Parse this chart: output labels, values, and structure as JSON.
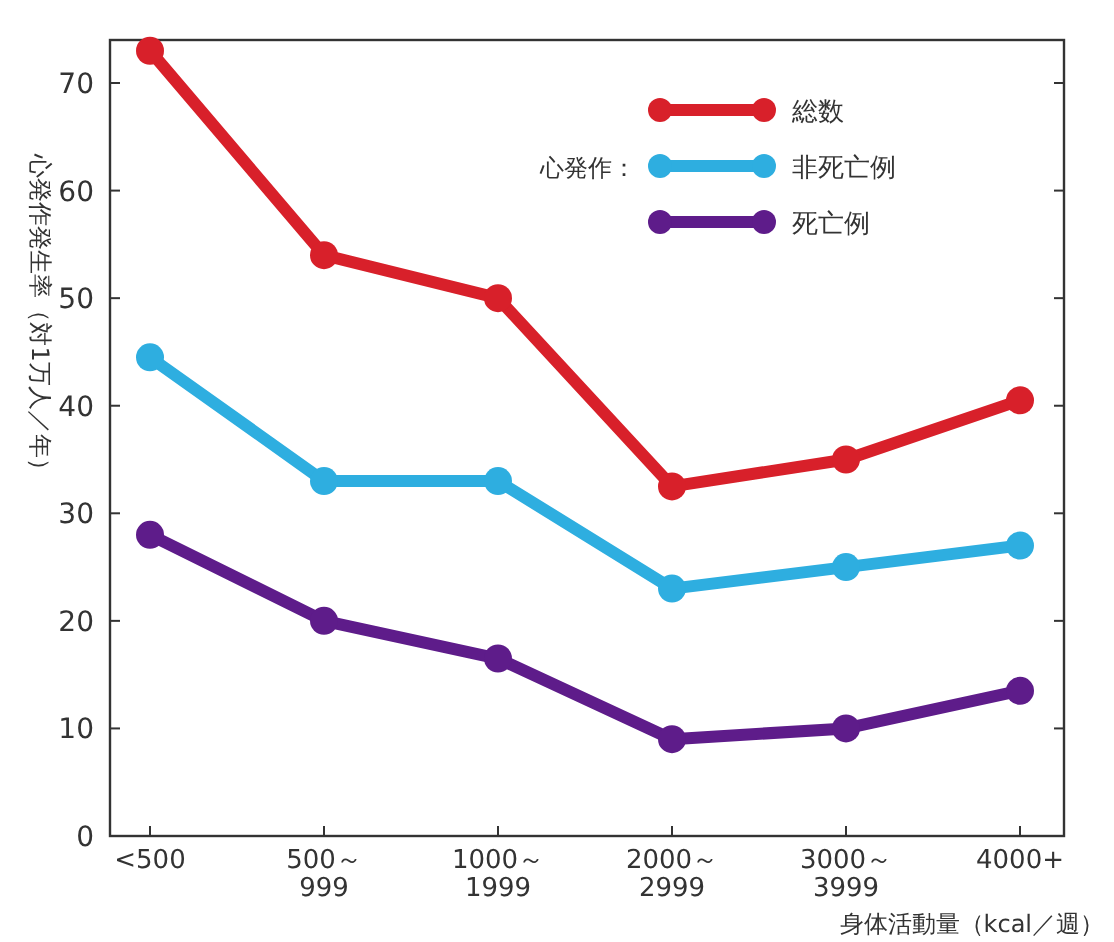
{
  "chart_data": {
    "type": "line",
    "ylabel": "心発作発生率（対1万人／年）",
    "xlabel": "身体活動量（kcal／週）",
    "legend_title": "心発作：",
    "categories": [
      "<500",
      "500～\n999",
      "1000～\n1999",
      "2000～\n2999",
      "3000～\n3999",
      "4000+"
    ],
    "series": [
      {
        "name": "総数",
        "color": "#d8202a",
        "values": [
          73,
          54,
          50,
          32.5,
          35,
          40.5
        ]
      },
      {
        "name": "非死亡例",
        "color": "#2eaee0",
        "values": [
          44.5,
          33,
          33,
          23,
          25,
          27
        ]
      },
      {
        "name": "死亡例",
        "color": "#5e1c8a",
        "values": [
          28,
          20,
          16.5,
          9,
          10,
          13.5
        ]
      }
    ],
    "ylim": [
      0,
      74
    ],
    "yticks": [
      0,
      10,
      20,
      30,
      40,
      50,
      60,
      70
    ],
    "grid": false,
    "legend": "top right",
    "marker": "circle",
    "line_style": "solid"
  }
}
